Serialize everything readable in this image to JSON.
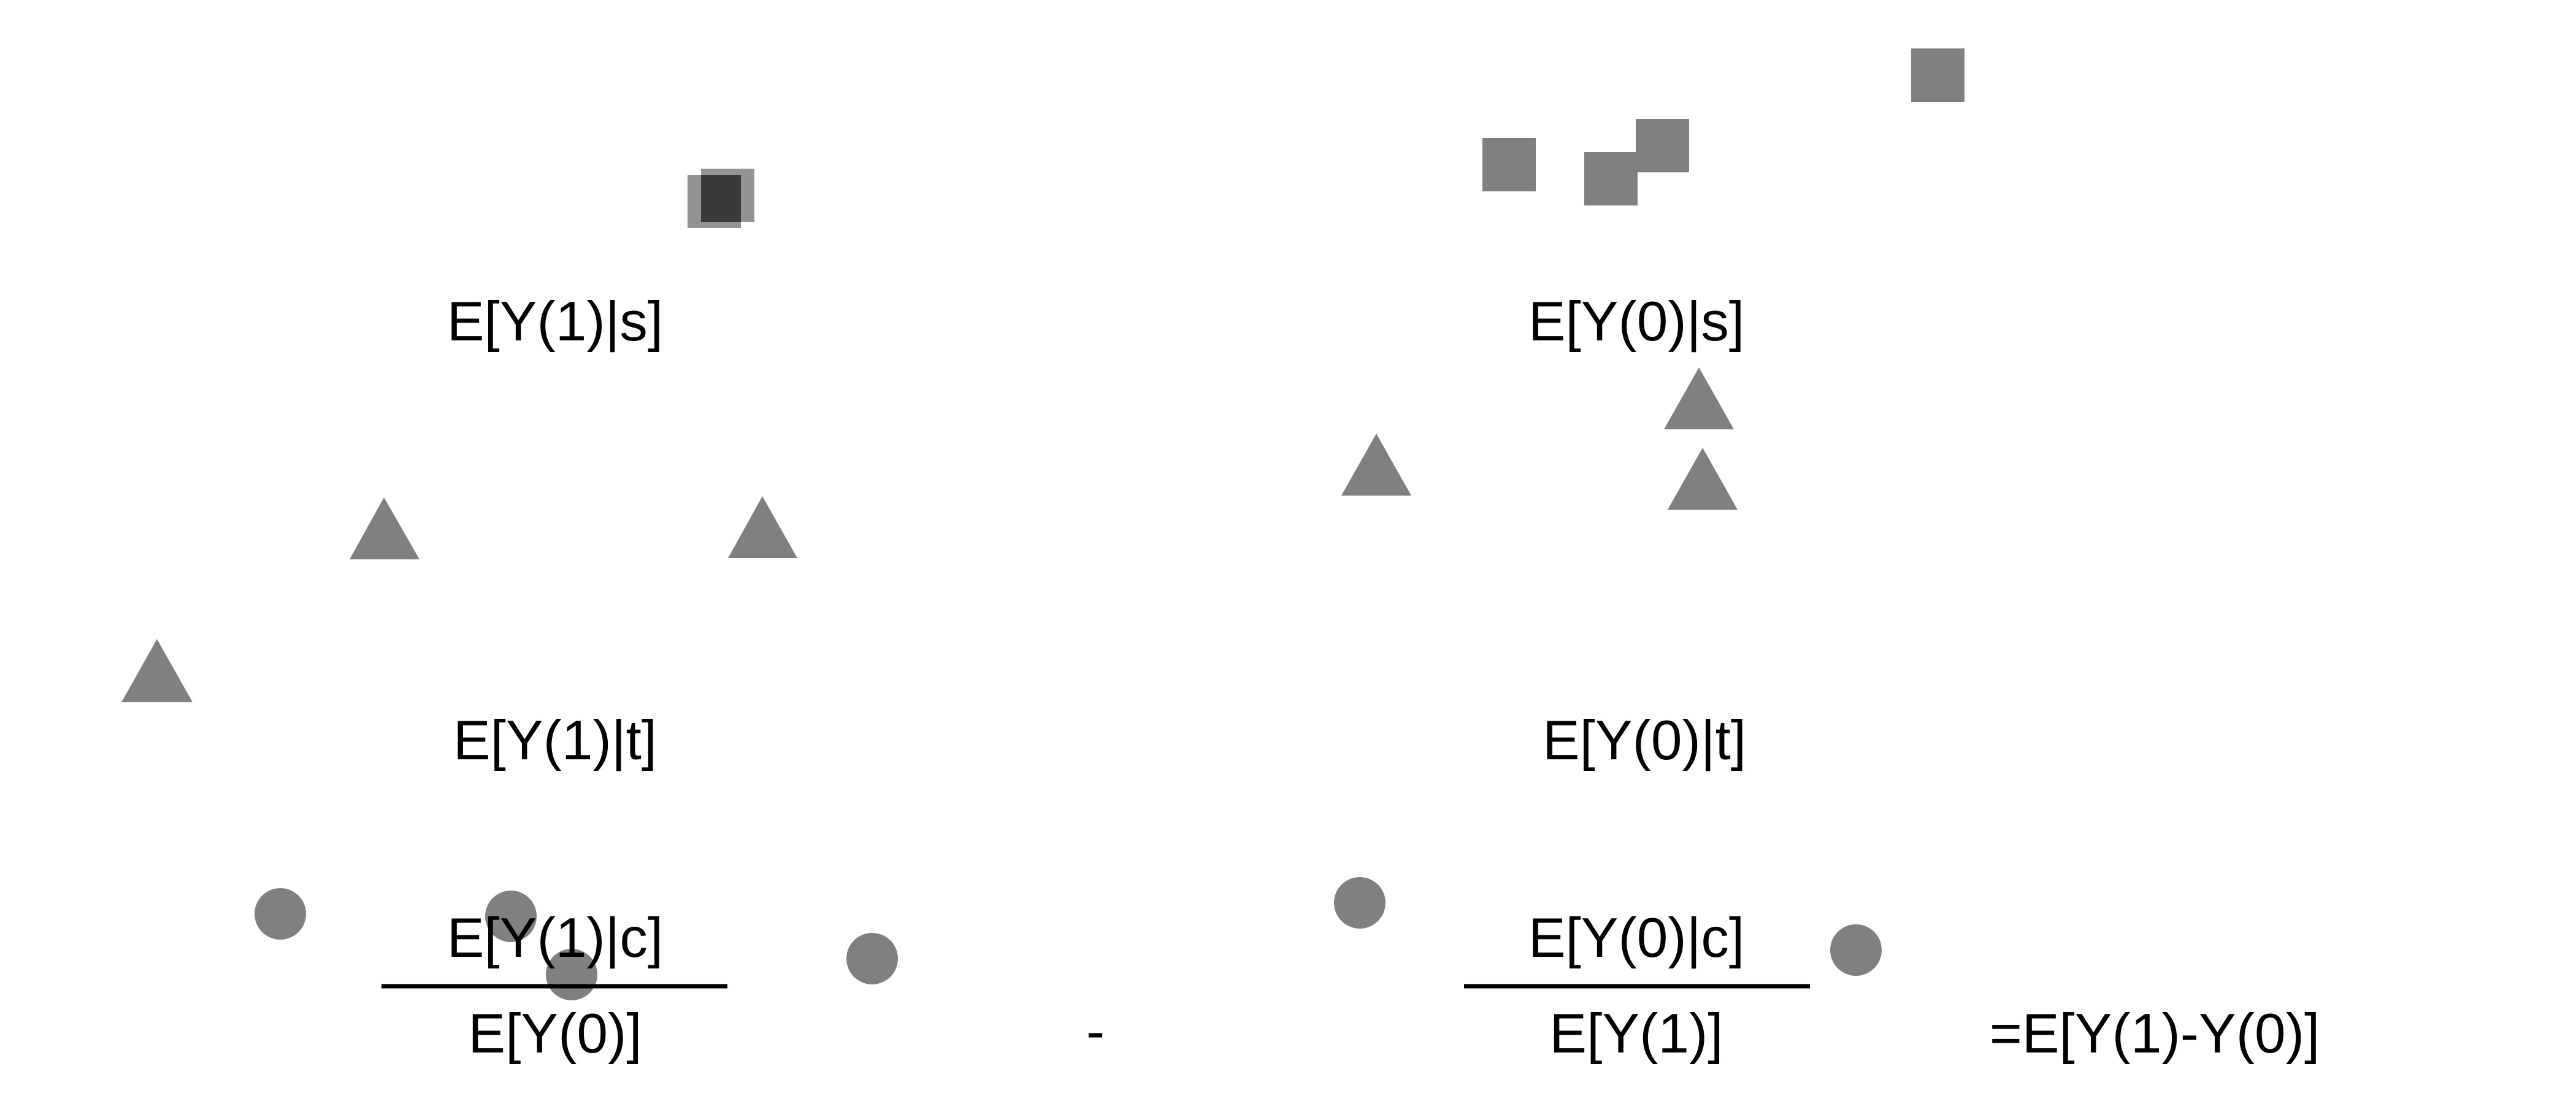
{
  "colors": {
    "background": "#ffffff",
    "marker": "#808080",
    "marker_overlap": "#3a3a3a",
    "text": "#000000"
  },
  "labels": {
    "y1_given_s": "E[Y(1)|s]",
    "y0_given_s": "E[Y(0)|s]",
    "y1_given_t": "E[Y(1)|t]",
    "y0_given_t": "E[Y(0)|t]",
    "y1_given_c": "E[Y(1)|c]",
    "y0_given_c": "E[Y(0)|c]",
    "left_denominator": "E[Y(0)]",
    "right_denominator": "E[Y(1)]",
    "minus": "-",
    "result": "=E[Y(1)-Y(0)]"
  },
  "marker_shapes": [
    "square",
    "triangle",
    "circle"
  ]
}
